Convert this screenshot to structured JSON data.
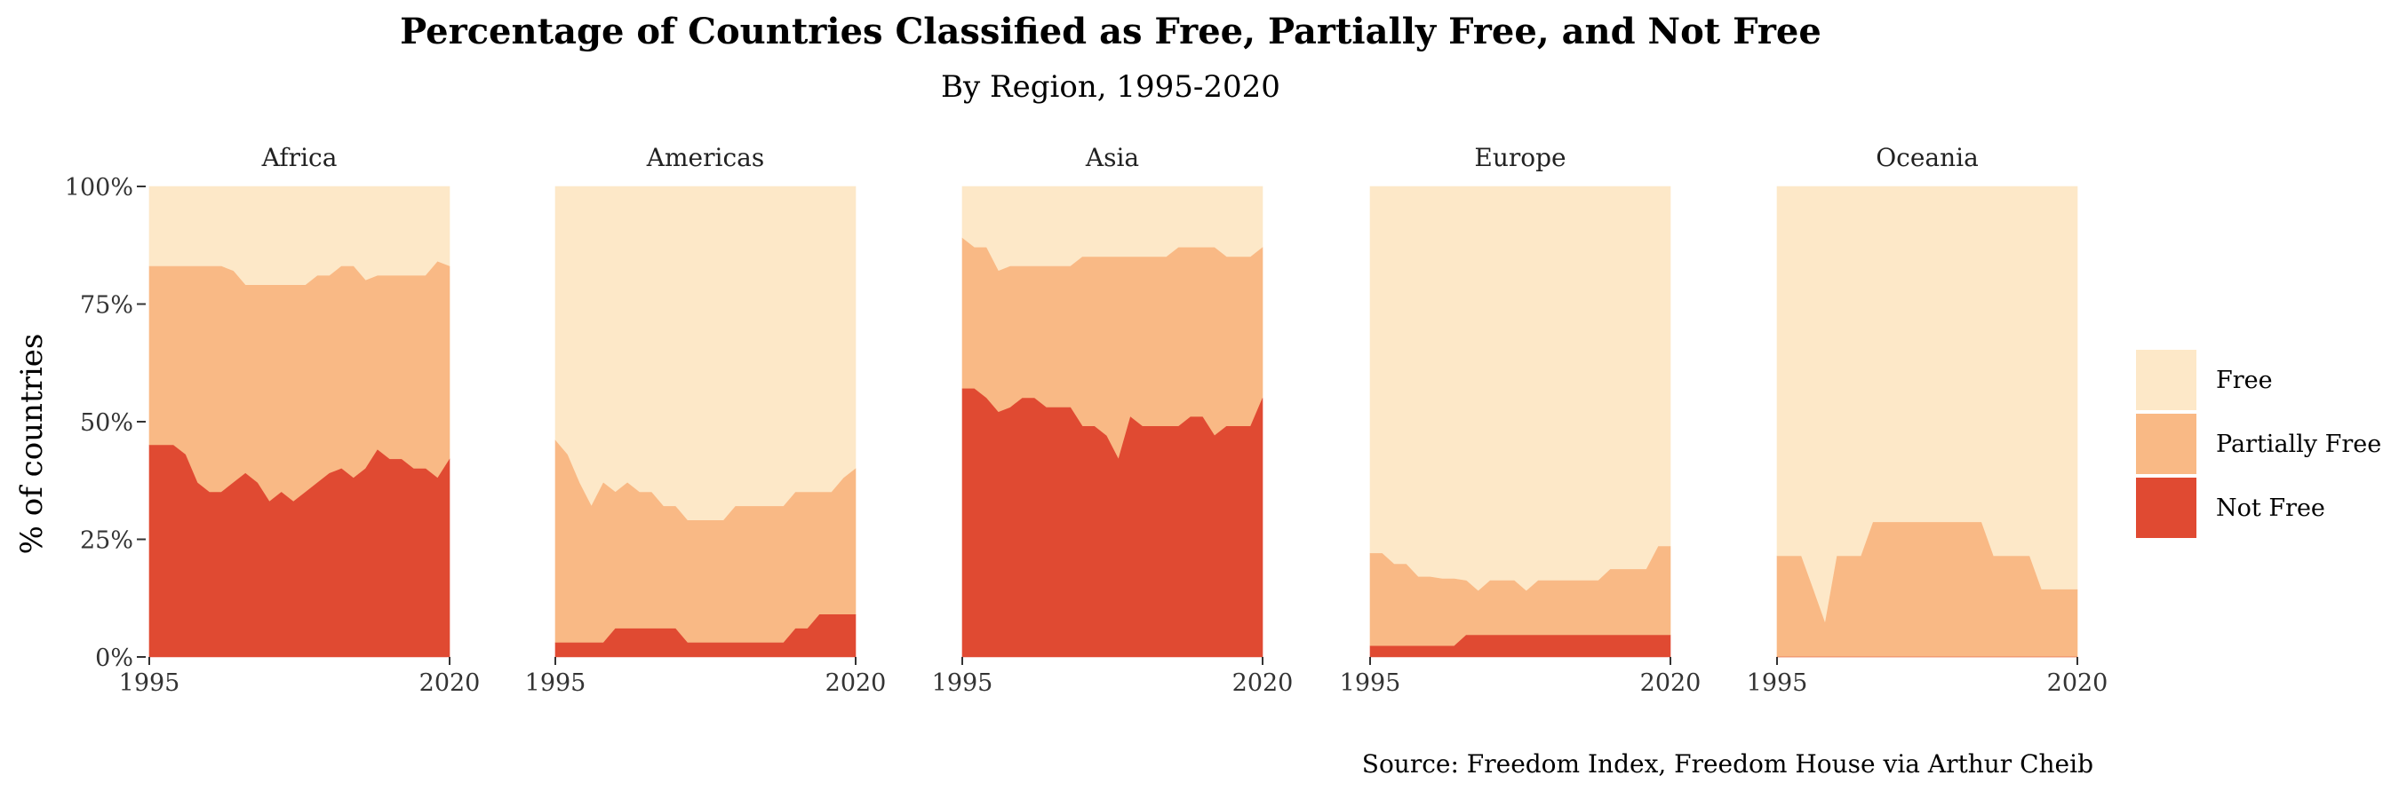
{
  "title": "Percentage of Countries Classified as Free, Partially Free, and Not Free",
  "subtitle": "By Region, 1995-2020",
  "ylabel": "% of countries",
  "caption": "Source: Freedom Index, Freedom House via Arthur Cheib",
  "colors": {
    "free": "#fde8c8",
    "partially_free": "#f9b985",
    "not_free": "#e04a32"
  },
  "legend": [
    "Free",
    "Partially Free",
    "Not Free"
  ],
  "chart_data": {
    "type": "area",
    "stacked": true,
    "facets": [
      "Africa",
      "Americas",
      "Asia",
      "Europe",
      "Oceania"
    ],
    "x": [
      1995,
      1996,
      1997,
      1998,
      1999,
      2000,
      2001,
      2002,
      2003,
      2004,
      2005,
      2006,
      2007,
      2008,
      2009,
      2010,
      2011,
      2012,
      2013,
      2014,
      2015,
      2016,
      2017,
      2018,
      2019,
      2020
    ],
    "xticks": [
      1995,
      2020
    ],
    "xlim": [
      1995,
      2020
    ],
    "ylim": [
      0,
      100
    ],
    "yticks": [
      "0%",
      "25%",
      "50%",
      "75%",
      "100%"
    ],
    "ylabel": "% of countries",
    "legend_position": "right",
    "grid": false,
    "series_order": [
      "Not Free",
      "Partially Free",
      "Free"
    ],
    "panels": [
      {
        "region": "Africa",
        "not_free": [
          45,
          45,
          45,
          43,
          37,
          35,
          35,
          37,
          39,
          37,
          33,
          35,
          33,
          35,
          37,
          39,
          40,
          38,
          40,
          44,
          42,
          42,
          40,
          40,
          38,
          42
        ],
        "partially_free": [
          38,
          38,
          38,
          40,
          46,
          48,
          48,
          45,
          40,
          42,
          46,
          44,
          46,
          44,
          44,
          42,
          43,
          45,
          40,
          37,
          39,
          39,
          41,
          41,
          46,
          41
        ],
        "free": [
          17,
          17,
          17,
          17,
          17,
          17,
          17,
          18,
          21,
          21,
          21,
          21,
          21,
          21,
          19,
          19,
          17,
          17,
          20,
          19,
          19,
          19,
          19,
          19,
          16,
          17
        ]
      },
      {
        "region": "Americas",
        "not_free": [
          3,
          3,
          3,
          3,
          3,
          6,
          6,
          6,
          6,
          6,
          6,
          3,
          3,
          3,
          3,
          3,
          3,
          3,
          3,
          3,
          6,
          6,
          9,
          9,
          9,
          9
        ],
        "partially_free": [
          43,
          40,
          34,
          29,
          34,
          29,
          31,
          29,
          29,
          26,
          26,
          26,
          26,
          26,
          26,
          29,
          29,
          29,
          29,
          29,
          29,
          29,
          26,
          26,
          29,
          31
        ],
        "free": [
          54,
          57,
          63,
          68,
          63,
          65,
          63,
          65,
          65,
          68,
          68,
          71,
          71,
          71,
          71,
          68,
          68,
          68,
          68,
          68,
          65,
          65,
          65,
          65,
          62,
          60
        ]
      },
      {
        "region": "Asia",
        "not_free": [
          57,
          57,
          55,
          52,
          53,
          55,
          55,
          53,
          53,
          53,
          49,
          49,
          47,
          42,
          51,
          49,
          49,
          49,
          49,
          51,
          51,
          47,
          49,
          49,
          49,
          55
        ],
        "partially_free": [
          32,
          30,
          32,
          30,
          30,
          28,
          28,
          30,
          30,
          30,
          36,
          36,
          38,
          43,
          34,
          36,
          36,
          36,
          38,
          36,
          36,
          40,
          36,
          36,
          36,
          32
        ],
        "free": [
          11,
          13,
          13,
          18,
          17,
          17,
          17,
          17,
          17,
          17,
          15,
          15,
          15,
          15,
          15,
          15,
          15,
          15,
          13,
          13,
          13,
          13,
          15,
          15,
          15,
          13
        ]
      },
      {
        "region": "Europe",
        "not_free": [
          2.3,
          2.3,
          2.3,
          2.3,
          2.3,
          2.3,
          2.3,
          2.3,
          4.6,
          4.6,
          4.6,
          4.6,
          4.6,
          4.6,
          4.6,
          4.6,
          4.6,
          4.6,
          4.6,
          4.6,
          4.6,
          4.6,
          4.6,
          4.6,
          4.6,
          4.6
        ],
        "partially_free": [
          19.7,
          19.7,
          17.4,
          17.4,
          14.7,
          14.7,
          14.3,
          14.3,
          11.6,
          9.4,
          11.6,
          11.6,
          11.6,
          9.4,
          11.6,
          11.6,
          11.6,
          11.6,
          11.6,
          11.6,
          14,
          14,
          14,
          14,
          18.9,
          18.9
        ],
        "free": [
          78,
          78,
          80.3,
          80.3,
          83,
          83,
          83.4,
          83.4,
          83.8,
          86,
          83.8,
          83.8,
          83.8,
          86,
          83.8,
          83.8,
          83.8,
          83.8,
          83.8,
          83.8,
          81.4,
          81.4,
          81.4,
          81.4,
          76.5,
          76.5
        ]
      },
      {
        "region": "Oceania",
        "not_free": [
          0,
          0,
          0,
          0,
          0,
          0,
          0,
          0,
          0,
          0,
          0,
          0,
          0,
          0,
          0,
          0,
          0,
          0,
          0,
          0,
          0,
          0,
          0,
          0,
          0,
          0
        ],
        "partially_free": [
          21.4,
          21.4,
          21.4,
          14.3,
          7.1,
          21.4,
          21.4,
          21.4,
          28.6,
          28.6,
          28.6,
          28.6,
          28.6,
          28.6,
          28.6,
          28.6,
          28.6,
          28.6,
          21.4,
          21.4,
          21.4,
          21.4,
          14.3,
          14.3,
          14.3,
          14.3
        ],
        "free": [
          78.6,
          78.6,
          78.6,
          85.7,
          92.9,
          78.6,
          78.6,
          78.6,
          71.4,
          71.4,
          71.4,
          71.4,
          71.4,
          71.4,
          71.4,
          71.4,
          71.4,
          71.4,
          78.6,
          78.6,
          78.6,
          78.6,
          85.7,
          85.7,
          85.7,
          85.7
        ]
      }
    ]
  }
}
